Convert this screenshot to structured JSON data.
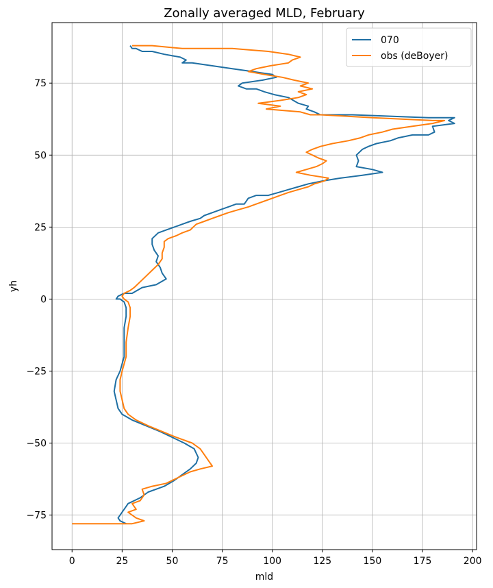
{
  "chart_data": {
    "type": "line",
    "title": "Zonally averaged MLD, February",
    "xlabel": "mld",
    "ylabel": "yh",
    "xlim": [
      -10,
      202
    ],
    "ylim": [
      -87,
      96
    ],
    "xticks": [
      0,
      25,
      50,
      75,
      100,
      125,
      150,
      175,
      200
    ],
    "yticks": [
      -75,
      -50,
      -25,
      0,
      25,
      50,
      75
    ],
    "grid": true,
    "legend_position": "top-right",
    "series": [
      {
        "name": "070",
        "color": "#1f6fa3",
        "points": [
          [
            27,
            -78
          ],
          [
            24,
            -77
          ],
          [
            23,
            -76
          ],
          [
            24,
            -75
          ],
          [
            26,
            -73
          ],
          [
            28,
            -71
          ],
          [
            31,
            -70
          ],
          [
            34,
            -69
          ],
          [
            38,
            -67
          ],
          [
            42,
            -66
          ],
          [
            46,
            -65
          ],
          [
            51,
            -63
          ],
          [
            55,
            -61
          ],
          [
            59,
            -59
          ],
          [
            62,
            -57
          ],
          [
            63,
            -55
          ],
          [
            61,
            -52
          ],
          [
            56,
            -50
          ],
          [
            50,
            -48
          ],
          [
            44,
            -46
          ],
          [
            37,
            -44
          ],
          [
            30,
            -42
          ],
          [
            25,
            -40
          ],
          [
            23,
            -38
          ],
          [
            22,
            -35
          ],
          [
            21,
            -32
          ],
          [
            22,
            -28
          ],
          [
            24,
            -25
          ],
          [
            26,
            -20
          ],
          [
            26,
            -15
          ],
          [
            26,
            -10
          ],
          [
            27,
            -6
          ],
          [
            27,
            -3
          ],
          [
            26,
            -1
          ],
          [
            24,
            0
          ],
          [
            22,
            0
          ],
          [
            23,
            1
          ],
          [
            26,
            2
          ],
          [
            30,
            2
          ],
          [
            35,
            4
          ],
          [
            42,
            5
          ],
          [
            47,
            7
          ],
          [
            45,
            9
          ],
          [
            44,
            11
          ],
          [
            42,
            13
          ],
          [
            43,
            15
          ],
          [
            41,
            17
          ],
          [
            40,
            19
          ],
          [
            40,
            21
          ],
          [
            43,
            23
          ],
          [
            47,
            24
          ],
          [
            51,
            25
          ],
          [
            55,
            26
          ],
          [
            59,
            27
          ],
          [
            64,
            28
          ],
          [
            66,
            29
          ],
          [
            70,
            30
          ],
          [
            74,
            31
          ],
          [
            78,
            32
          ],
          [
            82,
            33
          ],
          [
            86,
            33
          ],
          [
            88,
            35
          ],
          [
            92,
            36
          ],
          [
            98,
            36
          ],
          [
            103,
            37
          ],
          [
            108,
            38
          ],
          [
            113,
            39
          ],
          [
            118,
            40
          ],
          [
            125,
            41
          ],
          [
            134,
            42
          ],
          [
            145,
            43
          ],
          [
            155,
            44
          ],
          [
            150,
            45
          ],
          [
            142,
            46
          ],
          [
            143,
            48
          ],
          [
            142,
            50
          ],
          [
            145,
            52
          ],
          [
            148,
            53
          ],
          [
            152,
            54
          ],
          [
            159,
            55
          ],
          [
            163,
            56
          ],
          [
            170,
            57
          ],
          [
            178,
            57
          ],
          [
            181,
            58
          ],
          [
            180,
            60
          ],
          [
            191,
            61
          ],
          [
            188,
            62
          ],
          [
            191,
            63
          ],
          [
            178,
            63
          ],
          [
            140,
            64
          ],
          [
            124,
            64
          ],
          [
            121,
            65
          ],
          [
            117,
            66
          ],
          [
            118,
            67
          ],
          [
            113,
            68
          ],
          [
            108,
            70
          ],
          [
            101,
            71
          ],
          [
            96,
            72
          ],
          [
            92,
            73
          ],
          [
            87,
            73
          ],
          [
            83,
            74
          ],
          [
            85,
            75
          ],
          [
            95,
            76
          ],
          [
            102,
            77
          ],
          [
            100,
            78
          ],
          [
            90,
            79
          ],
          [
            80,
            80
          ],
          [
            70,
            81
          ],
          [
            60,
            82
          ],
          [
            55,
            82
          ],
          [
            57,
            83
          ],
          [
            54,
            84
          ],
          [
            46,
            85
          ],
          [
            40,
            86
          ],
          [
            35,
            86
          ],
          [
            32,
            87
          ],
          [
            30,
            87
          ],
          [
            29,
            88
          ]
        ]
      },
      {
        "name": "obs (deBoyer)",
        "color": "#ff7f0e",
        "points": [
          [
            0,
            -78
          ],
          [
            5,
            -78
          ],
          [
            15,
            -78
          ],
          [
            22,
            -78
          ],
          [
            30,
            -78
          ],
          [
            36,
            -77
          ],
          [
            32,
            -76
          ],
          [
            28,
            -74
          ],
          [
            32,
            -73
          ],
          [
            30,
            -71
          ],
          [
            34,
            -70
          ],
          [
            36,
            -68
          ],
          [
            35,
            -66
          ],
          [
            40,
            -65
          ],
          [
            47,
            -64
          ],
          [
            53,
            -62
          ],
          [
            59,
            -60
          ],
          [
            64,
            -59
          ],
          [
            70,
            -58
          ],
          [
            68,
            -56
          ],
          [
            66,
            -54
          ],
          [
            64,
            -52
          ],
          [
            60,
            -50
          ],
          [
            52,
            -48
          ],
          [
            45,
            -46
          ],
          [
            38,
            -44
          ],
          [
            32,
            -42
          ],
          [
            28,
            -40
          ],
          [
            26,
            -38
          ],
          [
            25,
            -35
          ],
          [
            24,
            -32
          ],
          [
            24,
            -28
          ],
          [
            25,
            -25
          ],
          [
            27,
            -20
          ],
          [
            27,
            -15
          ],
          [
            28,
            -10
          ],
          [
            29,
            -6
          ],
          [
            29,
            -3
          ],
          [
            28,
            -1
          ],
          [
            26,
            0
          ],
          [
            25,
            1
          ],
          [
            26,
            2
          ],
          [
            29,
            3
          ],
          [
            31,
            4
          ],
          [
            34,
            6
          ],
          [
            37,
            8
          ],
          [
            40,
            10
          ],
          [
            43,
            12
          ],
          [
            45,
            14
          ],
          [
            45,
            16
          ],
          [
            46,
            18
          ],
          [
            46,
            20
          ],
          [
            48,
            21
          ],
          [
            52,
            22
          ],
          [
            55,
            23
          ],
          [
            59,
            24
          ],
          [
            62,
            26
          ],
          [
            66,
            27
          ],
          [
            70,
            28
          ],
          [
            74,
            29
          ],
          [
            78,
            30
          ],
          [
            83,
            31
          ],
          [
            88,
            32
          ],
          [
            92,
            33
          ],
          [
            96,
            34
          ],
          [
            100,
            35
          ],
          [
            104,
            36
          ],
          [
            108,
            37
          ],
          [
            113,
            38
          ],
          [
            118,
            39
          ],
          [
            121,
            40
          ],
          [
            126,
            41
          ],
          [
            128,
            42
          ],
          [
            119,
            43
          ],
          [
            112,
            44
          ],
          [
            117,
            45
          ],
          [
            122,
            46
          ],
          [
            125,
            47
          ],
          [
            127,
            48
          ],
          [
            123,
            49
          ],
          [
            120,
            50
          ],
          [
            117,
            51
          ],
          [
            120,
            52
          ],
          [
            124,
            53
          ],
          [
            130,
            54
          ],
          [
            138,
            55
          ],
          [
            144,
            56
          ],
          [
            148,
            57
          ],
          [
            155,
            58
          ],
          [
            160,
            59
          ],
          [
            170,
            60
          ],
          [
            180,
            61
          ],
          [
            186,
            62
          ],
          [
            180,
            62
          ],
          [
            150,
            63
          ],
          [
            124,
            64
          ],
          [
            119,
            64
          ],
          [
            114,
            65
          ],
          [
            97,
            66
          ],
          [
            104,
            67
          ],
          [
            93,
            68
          ],
          [
            104,
            69
          ],
          [
            113,
            70
          ],
          [
            117,
            71
          ],
          [
            113,
            72
          ],
          [
            120,
            73
          ],
          [
            114,
            74
          ],
          [
            118,
            75
          ],
          [
            111,
            76
          ],
          [
            105,
            77
          ],
          [
            96,
            78
          ],
          [
            88,
            79
          ],
          [
            92,
            80
          ],
          [
            99,
            81
          ],
          [
            108,
            82
          ],
          [
            110,
            83
          ],
          [
            114,
            84
          ],
          [
            108,
            85
          ],
          [
            98,
            86
          ],
          [
            80,
            87
          ],
          [
            55,
            87
          ],
          [
            40,
            88
          ],
          [
            30,
            88
          ]
        ]
      }
    ]
  }
}
